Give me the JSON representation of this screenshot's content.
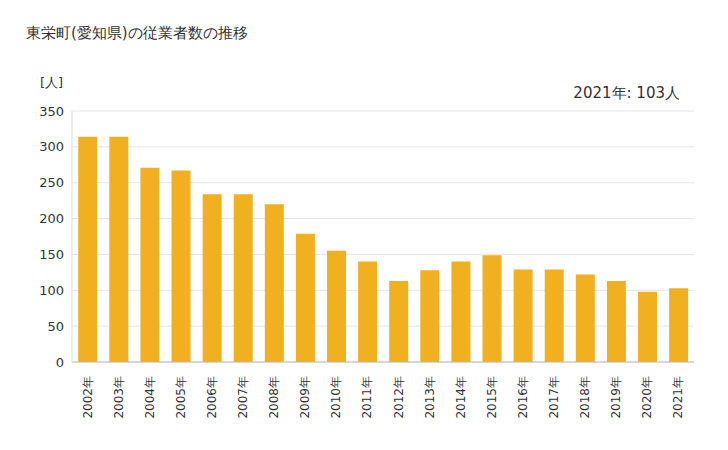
{
  "chart_data": {
    "type": "bar",
    "title": "東栄町(愛知県)の従業者数の推移",
    "ylabel": "[人]",
    "annotation": "2021年: 103人",
    "categories": [
      "2002年",
      "2003年",
      "2004年",
      "2005年",
      "2006年",
      "2007年",
      "2008年",
      "2009年",
      "2010年",
      "2011年",
      "2012年",
      "2013年",
      "2014年",
      "2015年",
      "2016年",
      "2017年",
      "2018年",
      "2019年",
      "2020年",
      "2021年"
    ],
    "values": [
      314,
      314,
      271,
      267,
      234,
      234,
      220,
      179,
      155,
      140,
      113,
      128,
      140,
      149,
      129,
      129,
      122,
      113,
      98,
      103
    ],
    "color": "#f0b020",
    "ylim": [
      0,
      350
    ],
    "yticks": [
      0,
      50,
      100,
      150,
      200,
      250,
      300,
      350
    ],
    "grid": true
  }
}
